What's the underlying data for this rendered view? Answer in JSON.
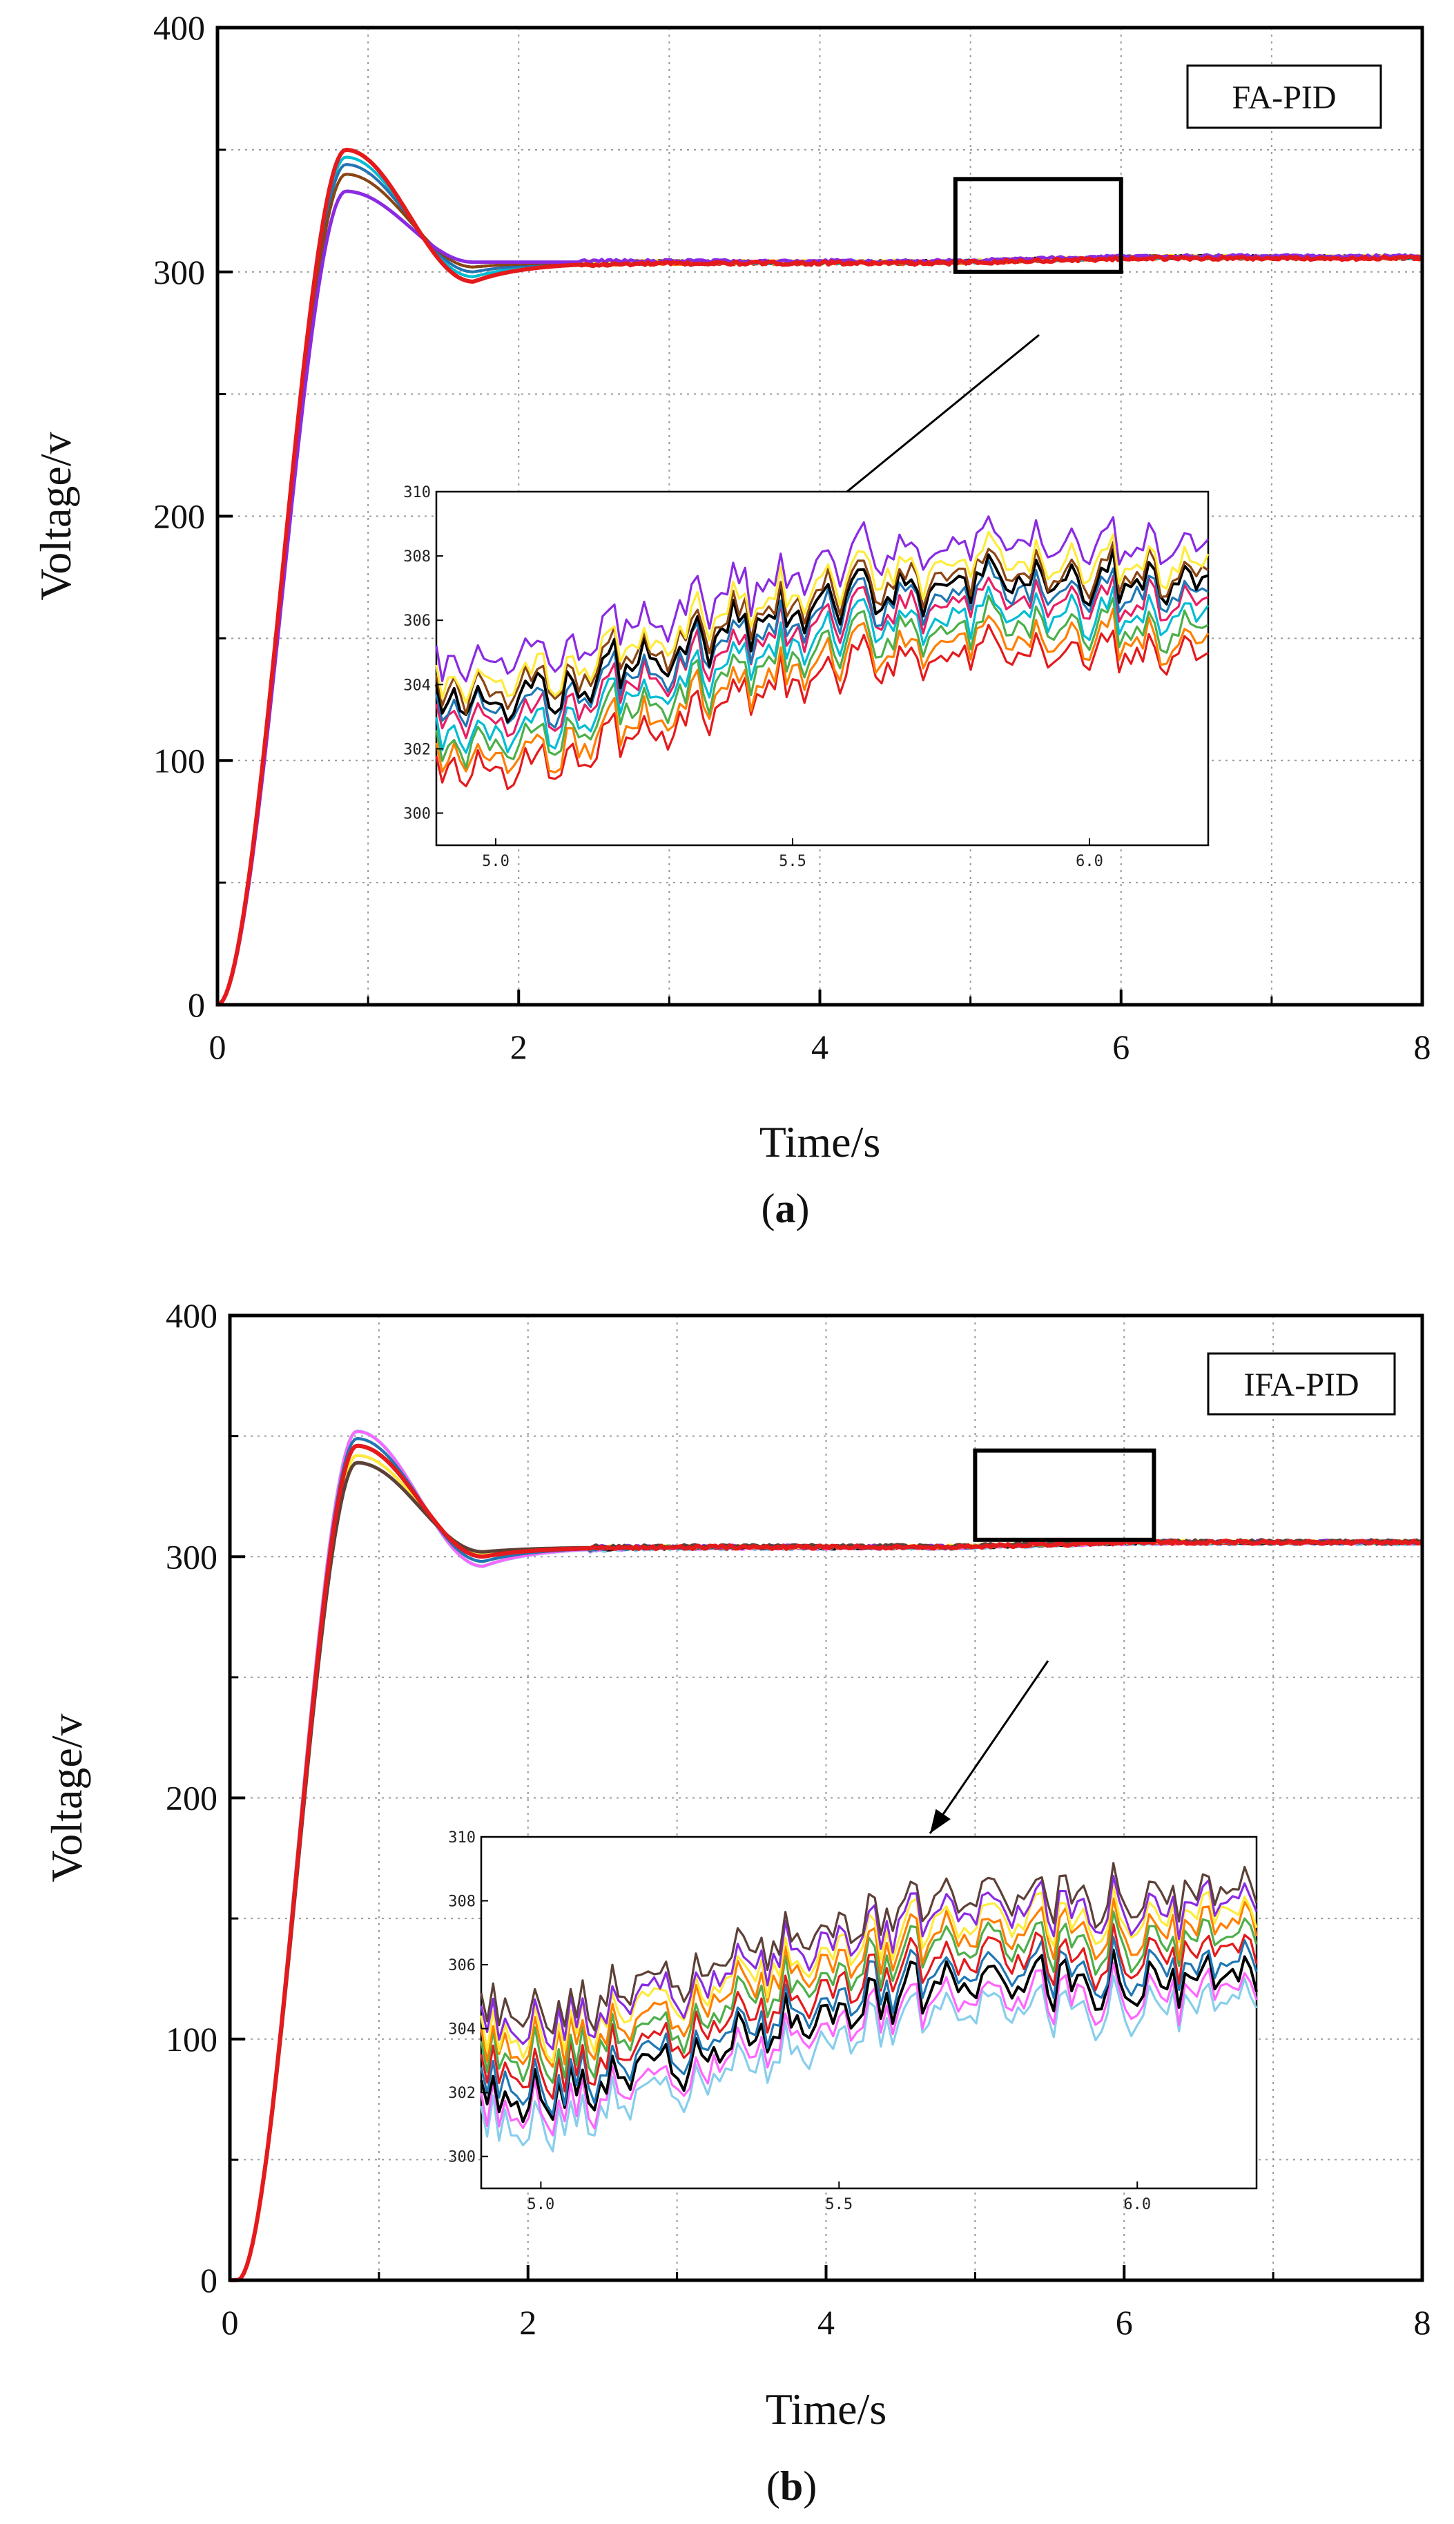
{
  "chart_data": [
    {
      "type": "line",
      "panel_label": "(a)",
      "panel_letter": "a",
      "legend_label": "FA-PID",
      "xlabel": "Time/s",
      "ylabel": "Voltage/v",
      "xlim": [
        0,
        8
      ],
      "ylim": [
        0,
        400
      ],
      "xticks": [
        0,
        2,
        4,
        6,
        8
      ],
      "yticks": [
        0,
        100,
        200,
        300,
        400
      ],
      "grid": true,
      "response": {
        "peak_time": 0.85,
        "peak_values": [
          350,
          347,
          344,
          340,
          333
        ],
        "undershoot_time": 1.7,
        "undershoot_values": [
          296,
          298,
          300,
          302,
          304
        ],
        "steady_state_start": 304,
        "steady_state_end": 306,
        "rise_start_time": 0.0
      },
      "series": [
        {
          "color": "#e41a1c",
          "offset": -1.6
        },
        {
          "color": "#ff7f00",
          "offset": -1.2
        },
        {
          "color": "#4daf4a",
          "offset": -0.8
        },
        {
          "color": "#00bcd4",
          "offset": -0.4
        },
        {
          "color": "#e91e63",
          "offset": 0.0
        },
        {
          "color": "#1f77b4",
          "offset": 0.3
        },
        {
          "color": "#000000",
          "offset": 0.6
        },
        {
          "color": "#8b4513",
          "offset": 0.9
        },
        {
          "color": "#ffeb3b",
          "offset": 1.2
        },
        {
          "color": "#8a2be2",
          "offset": 1.8
        }
      ],
      "zoom_box": {
        "x": [
          4.9,
          6.0
        ],
        "y": [
          300,
          338
        ]
      },
      "inset": {
        "xlim": [
          4.9,
          6.2
        ],
        "ylim": [
          299,
          310
        ],
        "xticks": [
          "5.0",
          "5.5",
          "6.0"
        ],
        "yticks": [
          "300",
          "302",
          "304",
          "306",
          "308",
          "310"
        ]
      }
    },
    {
      "type": "line",
      "panel_label": "(b)",
      "panel_letter": "b",
      "legend_label": "IFA-PID",
      "xlabel": "Time/s",
      "ylabel": "Voltage/v",
      "xlim": [
        0,
        8
      ],
      "ylim": [
        0,
        400
      ],
      "xticks": [
        0,
        2,
        4,
        6,
        8
      ],
      "yticks": [
        0,
        100,
        200,
        300,
        400
      ],
      "grid": true,
      "response": {
        "peak_time": 0.85,
        "peak_values": [
          352,
          349,
          346,
          342,
          339
        ],
        "undershoot_time": 1.7,
        "undershoot_values": [
          296,
          298,
          300,
          301,
          302
        ],
        "steady_state_start": 304,
        "steady_state_end": 306,
        "rise_start_time": 0.05
      },
      "series": [
        {
          "color": "#87ceeb",
          "offset": -1.8
        },
        {
          "color": "#ff66ff",
          "offset": -1.4
        },
        {
          "color": "#000000",
          "offset": -1.0
        },
        {
          "color": "#1f77b4",
          "offset": -0.6
        },
        {
          "color": "#e41a1c",
          "offset": -0.2
        },
        {
          "color": "#4daf4a",
          "offset": 0.2
        },
        {
          "color": "#ff7f00",
          "offset": 0.6
        },
        {
          "color": "#ffeb3b",
          "offset": 1.0
        },
        {
          "color": "#8a2be2",
          "offset": 1.3
        },
        {
          "color": "#5d4037",
          "offset": 1.7
        }
      ],
      "zoom_box": {
        "x": [
          5.0,
          6.2
        ],
        "y": [
          307,
          344
        ]
      },
      "inset": {
        "xlim": [
          4.9,
          6.2
        ],
        "ylim": [
          299,
          310
        ],
        "xticks": [
          "5.0",
          "5.5",
          "6.0"
        ],
        "yticks": [
          "300",
          "302",
          "304",
          "306",
          "308",
          "310"
        ]
      }
    }
  ]
}
